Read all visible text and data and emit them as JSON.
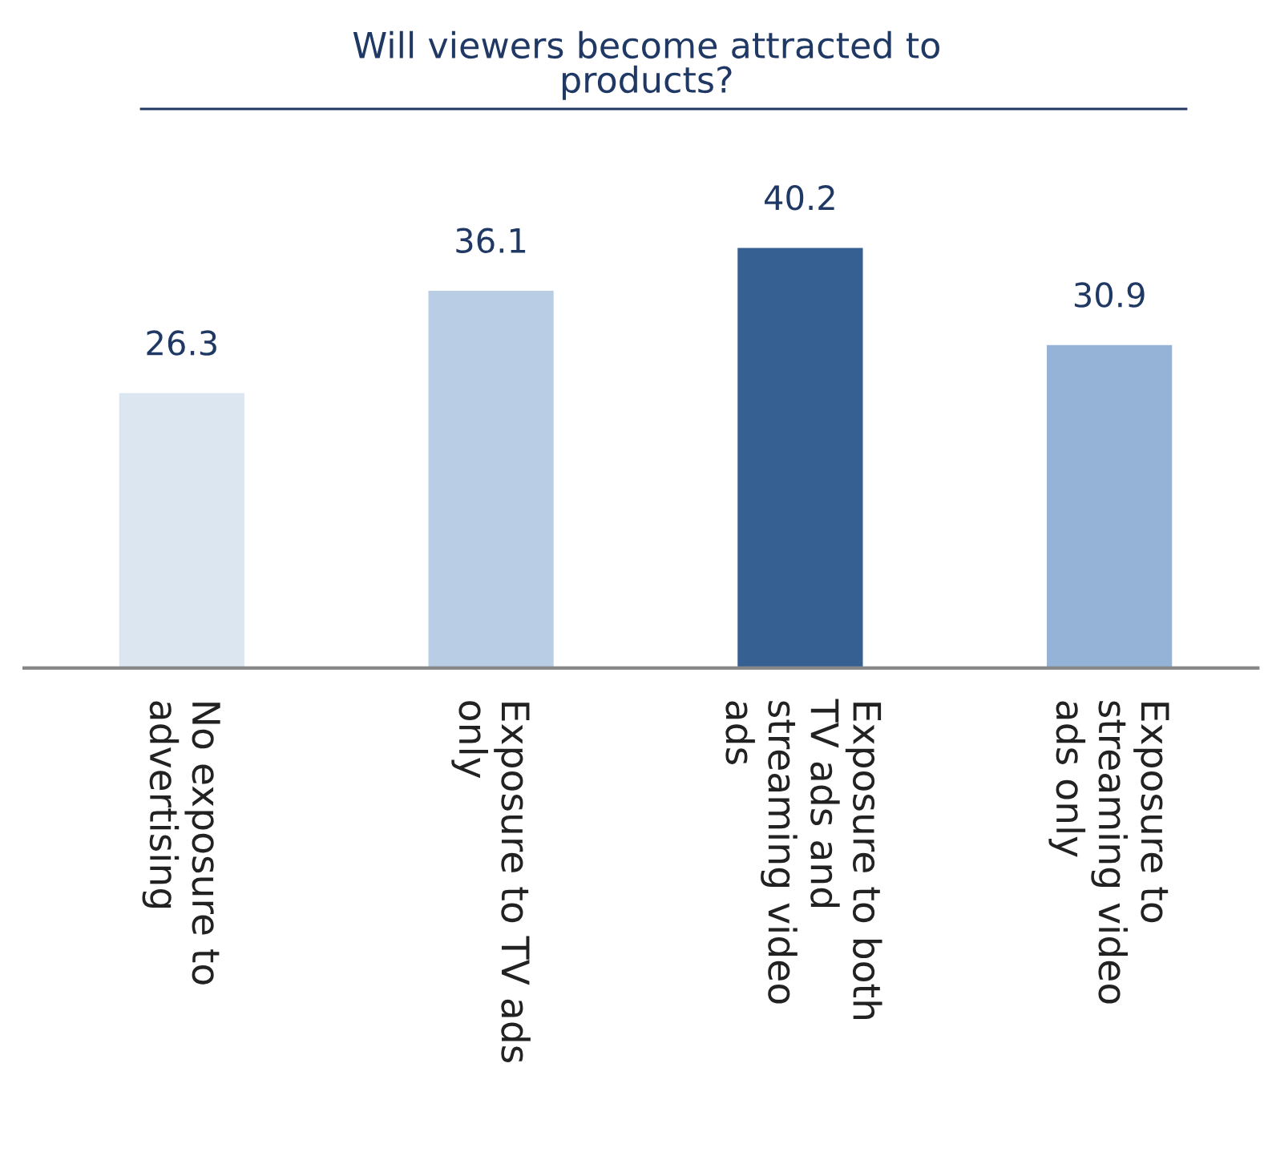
{
  "chart_data": {
    "type": "bar",
    "title": "Will viewers become attracted to\nproducts?",
    "categories": [
      "No exposure to\nadvertising",
      "Exposure to TV ads\nonly",
      "Exposure to both\nTV ads and\nstreaming video\nads",
      "Exposure to\nstreaming video\nads only"
    ],
    "values": [
      26.3,
      36.1,
      40.2,
      30.9
    ],
    "colors": [
      "#dce6f1",
      "#b9cde5",
      "#366092",
      "#95b3d7"
    ],
    "data_labels": true,
    "tick_labels": "x",
    "grid": false,
    "legend": false
  }
}
